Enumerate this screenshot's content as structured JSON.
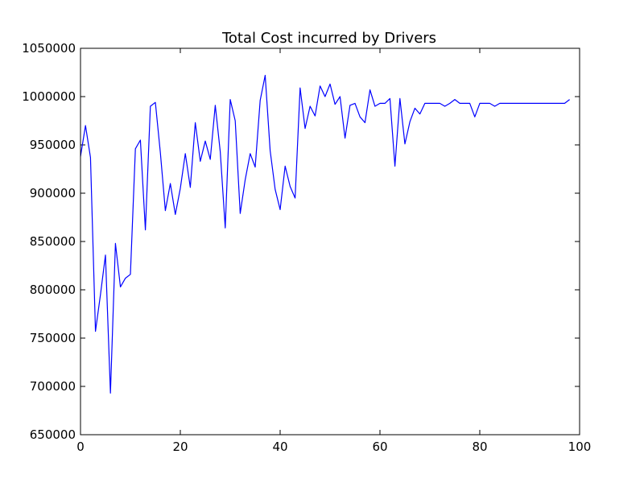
{
  "chart_data": {
    "type": "line",
    "title": "Total Cost incurred by Drivers",
    "xlabel": "",
    "ylabel": "",
    "xlim": [
      0,
      100
    ],
    "ylim": [
      650000,
      1050000
    ],
    "x_ticks": [
      0,
      20,
      40,
      60,
      80,
      100
    ],
    "x_tick_labels": [
      "0",
      "20",
      "40",
      "60",
      "80",
      "100"
    ],
    "y_ticks": [
      650000,
      700000,
      750000,
      800000,
      850000,
      900000,
      950000,
      1000000,
      1050000
    ],
    "y_tick_labels": [
      "650000",
      "700000",
      "750000",
      "800000",
      "850000",
      "900000",
      "950000",
      "1000000",
      "1050000"
    ],
    "grid": false,
    "line_color": "#0000ff",
    "x": [
      0,
      1,
      2,
      3,
      4,
      5,
      6,
      7,
      8,
      9,
      10,
      11,
      12,
      13,
      14,
      15,
      16,
      17,
      18,
      19,
      20,
      21,
      22,
      23,
      24,
      25,
      26,
      27,
      28,
      29,
      30,
      31,
      32,
      33,
      34,
      35,
      36,
      37,
      38,
      39,
      40,
      41,
      42,
      43,
      44,
      45,
      46,
      47,
      48,
      49,
      50,
      51,
      52,
      53,
      54,
      55,
      56,
      57,
      58,
      59,
      60,
      61,
      62,
      63,
      64,
      65,
      66,
      67,
      68,
      69,
      70,
      71,
      72,
      73,
      74,
      75,
      76,
      77,
      78,
      79,
      80,
      81,
      82,
      83,
      84,
      85,
      86,
      87,
      88,
      89,
      90,
      91,
      92,
      93,
      94,
      95,
      96,
      97,
      98
    ],
    "y": [
      938000,
      970000,
      937000,
      757000,
      795000,
      836000,
      693000,
      848000,
      803000,
      812000,
      816000,
      946000,
      955000,
      862000,
      990000,
      994000,
      942000,
      882000,
      910000,
      878000,
      905000,
      941000,
      906000,
      973000,
      933000,
      954000,
      935000,
      991000,
      943000,
      864000,
      997000,
      975000,
      879000,
      914000,
      941000,
      927000,
      996000,
      1022000,
      944000,
      904000,
      883000,
      928000,
      907000,
      895000,
      1009000,
      967000,
      990000,
      980000,
      1011000,
      1000000,
      1013000,
      992000,
      1000000,
      957000,
      991000,
      993000,
      979000,
      973000,
      1007000,
      990000,
      993000,
      993000,
      998000,
      928000,
      998000,
      951000,
      974000,
      988000,
      982000,
      993000,
      993000,
      993000,
      993000,
      990000,
      993000,
      997000,
      993000,
      993000,
      993000,
      979000,
      993000,
      993000,
      993000,
      990000,
      993000,
      993000,
      993000,
      993000,
      993000,
      993000,
      993000,
      993000,
      993000,
      993000,
      993000,
      993000,
      993000,
      993000,
      997000
    ]
  }
}
